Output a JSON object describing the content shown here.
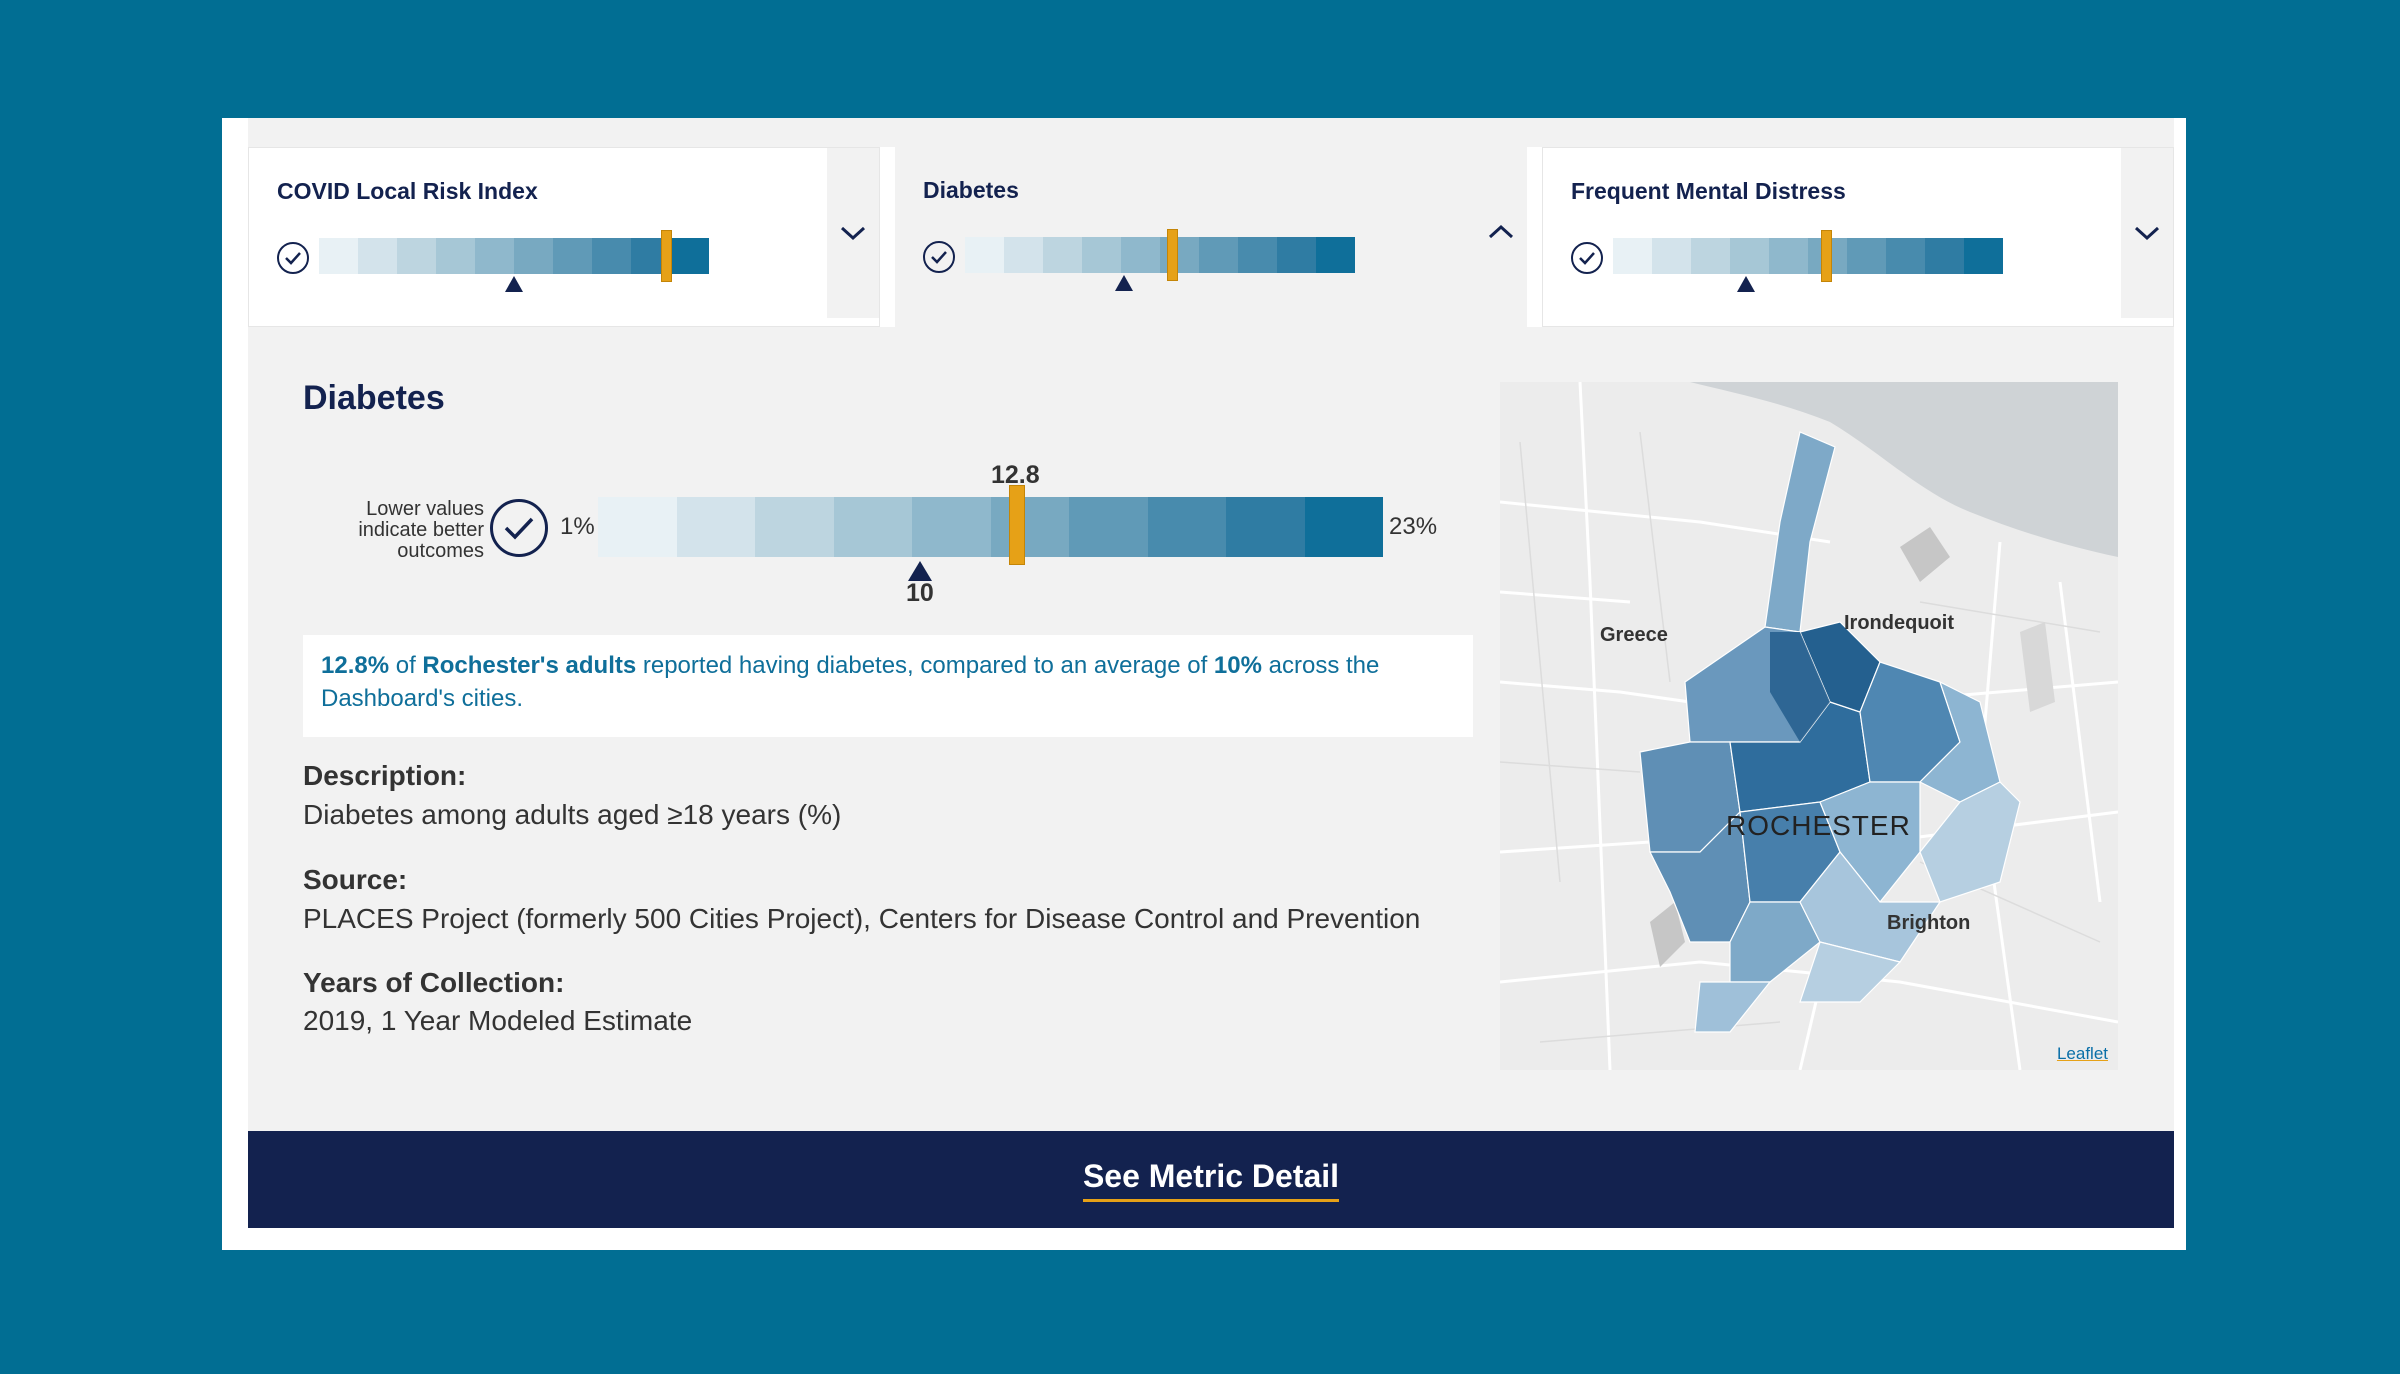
{
  "cards": [
    {
      "title": "COVID Local Risk Index",
      "expanded": false
    },
    {
      "title": "Diabetes",
      "expanded": true
    },
    {
      "title": "Frequent Mental Distress",
      "expanded": false
    }
  ],
  "detail": {
    "title": "Diabetes",
    "legend_text": "Lower values indicate better outcomes",
    "min_label": "1%",
    "max_label": "23%",
    "city_value": "12.8",
    "average_value": "10",
    "summary": {
      "city_pct": "12.8%",
      "of": " of ",
      "city_group": "Rochester's adults",
      "middle": " reported having diabetes, compared to an average of ",
      "avg_pct": "10%",
      "end": " across the Dashboard's cities."
    },
    "description_label": "Description:",
    "description": "Diabetes among adults aged ≥18 years (%)",
    "source_label": "Source:",
    "source": "PLACES Project (formerly 500 Cities Project), Centers for Disease Control and Prevention",
    "years_label": "Years of Collection:",
    "years": "2019, 1 Year Modeled Estimate"
  },
  "map": {
    "labels": [
      "Greece",
      "Irondequoit",
      "ROCHESTER",
      "Brighton"
    ],
    "attribution": "Leaflet"
  },
  "cta": {
    "label": "See Metric Detail"
  },
  "colors": {
    "navy": "#13224f",
    "accent": "#e6a117",
    "scale": [
      "#e8f1f5",
      "#d3e3eb",
      "#bdd5e0",
      "#a6c7d6",
      "#8fb8cc",
      "#78a9c1",
      "#609ab7",
      "#488bad",
      "#2f7ca3",
      "#0f6f9a"
    ]
  }
}
